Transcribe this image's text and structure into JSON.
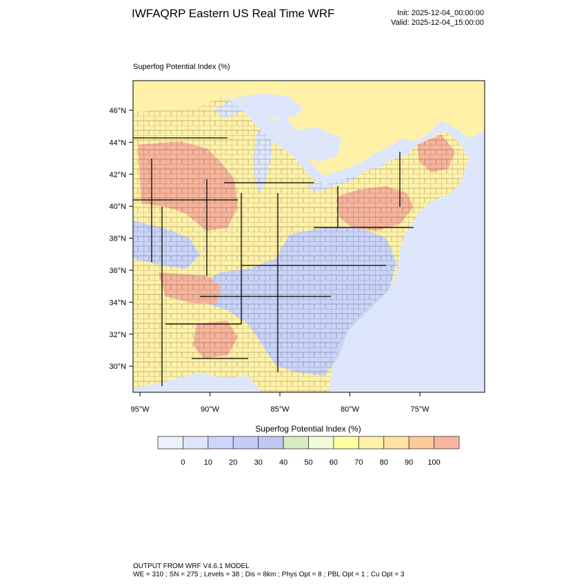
{
  "header": {
    "title": "IWFAQRP Eastern US Real Time WRF",
    "init": "Init: 2025-12-04_00:00:00",
    "valid": "Valid: 2025-12-04_15:00:00"
  },
  "field_label": "Superfog Potential Index   (%)",
  "map": {
    "lat_ticks": [
      "46°N",
      "44°N",
      "42°N",
      "40°N",
      "38°N",
      "36°N",
      "34°N",
      "32°N",
      "30°N"
    ],
    "lon_ticks": [
      "95°W",
      "90°W",
      "85°W",
      "80°W",
      "75°W"
    ],
    "colors": {
      "water": "#dde6fb",
      "land_low": "#c9d4f8",
      "land_mid": "#fff2a8",
      "land_high": "#f7b49a",
      "border": "#000000"
    }
  },
  "colorbar": {
    "title": "Superfog Potential Index  (%)",
    "labels": [
      "0",
      "10",
      "20",
      "30",
      "40",
      "50",
      "60",
      "70",
      "80",
      "90",
      "100"
    ],
    "colors": [
      "#eef1fb",
      "#dfe5fb",
      "#ccd7fb",
      "#c4cdf7",
      "#c2c6f2",
      "#d9ebc3",
      "#f0fbd8",
      "#ffff9e",
      "#fff1a8",
      "#fde3a1",
      "#fccb9a",
      "#f8b4a2"
    ]
  },
  "footer": {
    "line1": "OUTPUT FROM WRF V4.6.1 MODEL",
    "line2": "WE = 310 ; SN = 275 ; Levels = 38 ; Dis = 8km ; Phys Opt = 8 ; PBL Opt = 1 ; Cu Opt = 3"
  }
}
